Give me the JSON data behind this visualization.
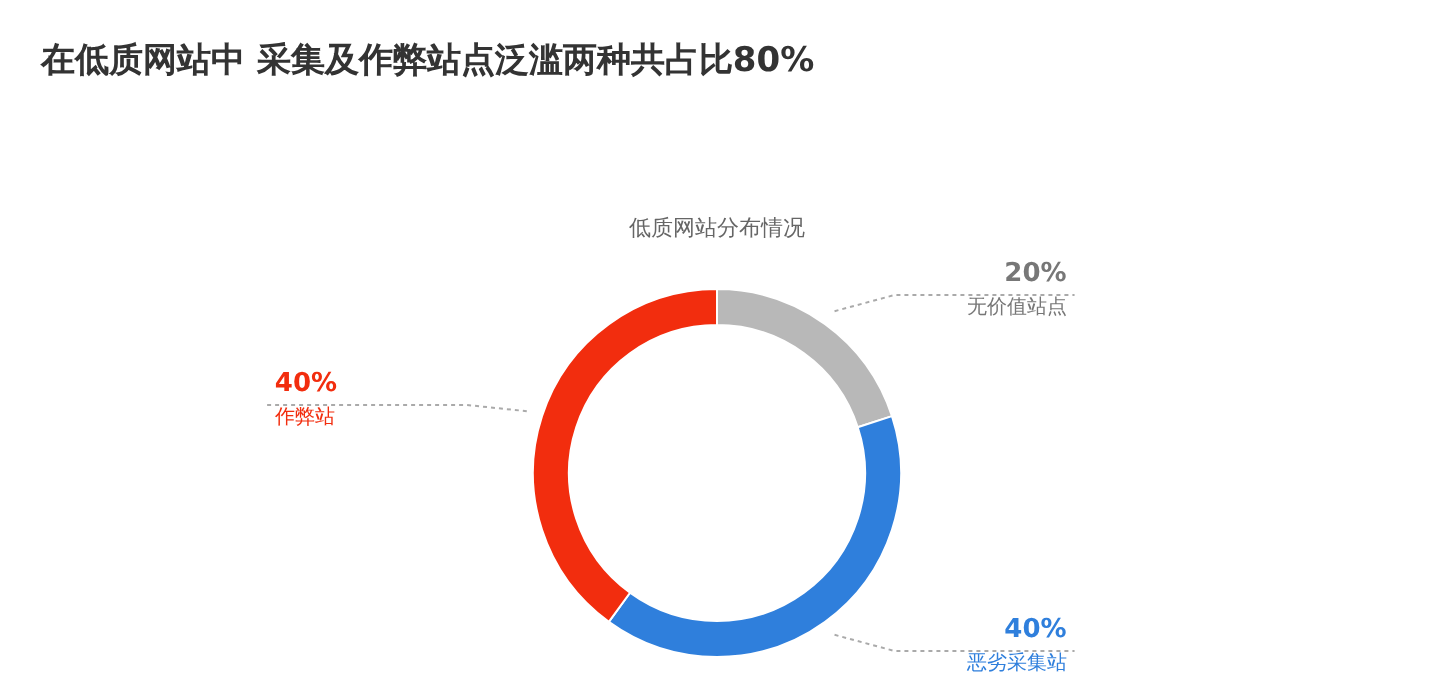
{
  "chart_data": {
    "type": "donut",
    "title": "在低质网站中 采集及作弊站点泛滥两种共占比80%",
    "subtitle": "低质网站分布情况",
    "categories": [
      "无价值站点",
      "恶劣采集站",
      "作弊站"
    ],
    "values": [
      20,
      40,
      40
    ],
    "value_labels": [
      "20%",
      "40%",
      "40%"
    ],
    "colors": [
      "#b8b8b8",
      "#2f7fdc",
      "#f22d0e"
    ]
  }
}
